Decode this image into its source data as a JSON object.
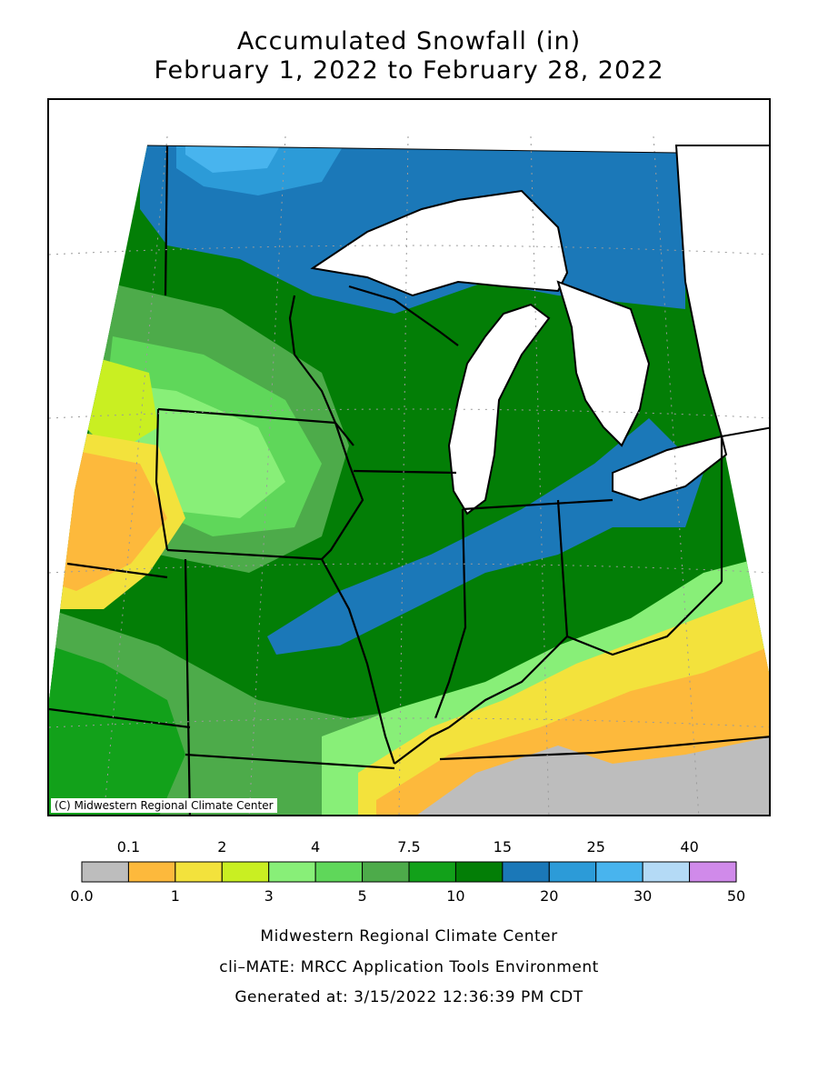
{
  "title": {
    "line1": "Accumulated Snowfall (in)",
    "line2": "February 1, 2022 to February 28, 2022"
  },
  "map": {
    "copyright": "(C) Midwestern Regional Climate Center"
  },
  "legend": {
    "colors": [
      "#bdbdbd",
      "#fdb93c",
      "#f3e23c",
      "#c9ef22",
      "#88ef78",
      "#5fd75a",
      "#4dab4a",
      "#12a11a",
      "#037e06",
      "#1b78b8",
      "#2c9bd8",
      "#48b4ee",
      "#b4daf6",
      "#d08aea"
    ],
    "top_labels": [
      "0.1",
      "2",
      "4",
      "7.5",
      "15",
      "25",
      "40"
    ],
    "bottom_labels": [
      "0.0",
      "1",
      "3",
      "5",
      "10",
      "20",
      "30",
      "50"
    ]
  },
  "credits": {
    "line1": "Midwestern Regional Climate Center",
    "line2": "cli–MATE: MRCC Application Tools Environment",
    "line3": "Generated at: 3/15/2022 12:36:39 PM CDT"
  }
}
